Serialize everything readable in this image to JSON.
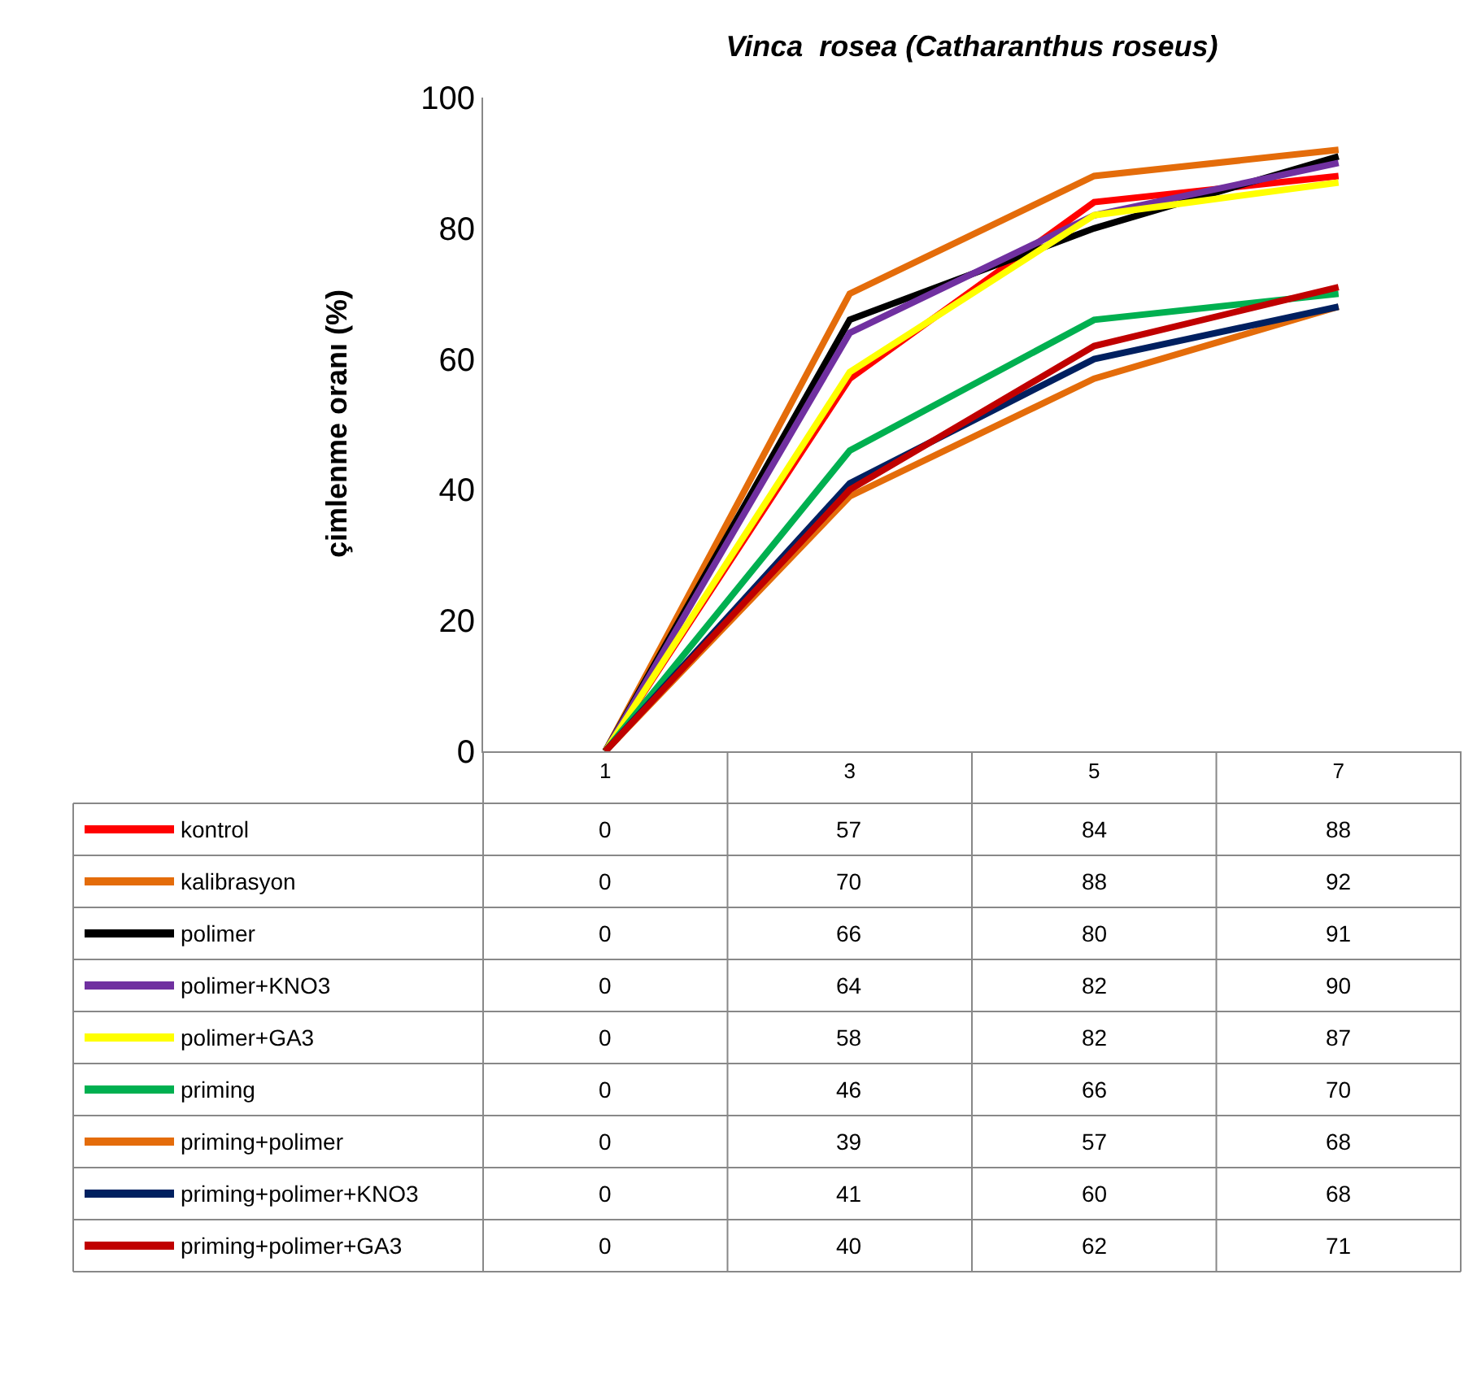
{
  "chart_data": {
    "type": "line",
    "title": "Vinca  rosea (Catharanthus roseus)",
    "ylabel": "çimlenme oranı (%)",
    "categories": [
      "1",
      "3",
      "5",
      "7"
    ],
    "series": [
      {
        "name": "kontrol",
        "color": "#ff0000",
        "values": [
          0,
          57,
          84,
          88
        ]
      },
      {
        "name": "kalibrasyon",
        "color": "#e46c0a",
        "values": [
          0,
          70,
          88,
          92
        ]
      },
      {
        "name": "polimer",
        "color": "#000000",
        "values": [
          0,
          66,
          80,
          91
        ]
      },
      {
        "name": "polimer+KNO3",
        "color": "#7030a0",
        "values": [
          0,
          64,
          82,
          90
        ]
      },
      {
        "name": "polimer+GA3",
        "color": "#ffff00",
        "values": [
          0,
          58,
          82,
          87
        ]
      },
      {
        "name": "priming",
        "color": "#00b050",
        "values": [
          0,
          46,
          66,
          70
        ]
      },
      {
        "name": "priming+polimer",
        "color": "#e46c0a",
        "values": [
          0,
          39,
          57,
          68
        ]
      },
      {
        "name": "priming+polimer+KNO3",
        "color": "#002060",
        "values": [
          0,
          41,
          60,
          68
        ]
      },
      {
        "name": "priming+polimer+GA3",
        "color": "#c00000",
        "values": [
          0,
          40,
          62,
          71
        ]
      }
    ],
    "ylim": [
      0,
      100
    ],
    "yticks": [
      0,
      20,
      40,
      60,
      80,
      100
    ],
    "legend": "bottom",
    "marker": "none",
    "line_style": "solid",
    "data_labels": true
  }
}
